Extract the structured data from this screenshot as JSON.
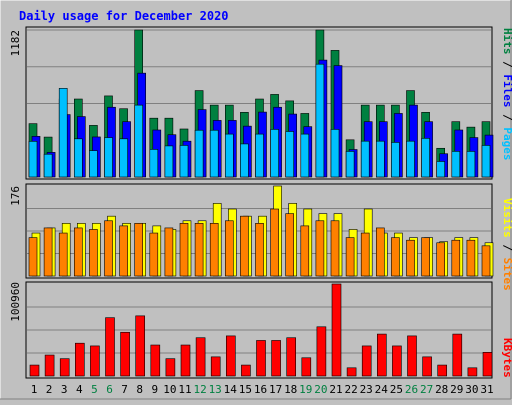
{
  "title": "Daily usage for December 2020",
  "colors": {
    "background": "#c0c0c0",
    "panel": "#c0c0c0",
    "grid": "#808080",
    "title": "#0000ff",
    "hits": "#008040",
    "files": "#0000ff",
    "pages": "#00c0ff",
    "visits": "#ffff00",
    "sites": "#ff8000",
    "kbytes": "#ff0000",
    "weekend": "#008040",
    "weekday": "#000000"
  },
  "chart_data": [
    {
      "type": "bar",
      "name": "hits-files-pages",
      "ymax_label": "1182",
      "ylim": [
        0,
        1182
      ],
      "categories": [
        "1",
        "2",
        "3",
        "4",
        "5",
        "6",
        "7",
        "8",
        "9",
        "10",
        "11",
        "12",
        "13",
        "14",
        "15",
        "16",
        "17",
        "18",
        "19",
        "20",
        "21",
        "22",
        "23",
        "24",
        "25",
        "26",
        "27",
        "28",
        "29",
        "30",
        "31"
      ],
      "series": [
        {
          "name": "Hits",
          "values": [
            429,
            321,
            627,
            627,
            415,
            652,
            549,
            1182,
            473,
            473,
            386,
            695,
            578,
            578,
            520,
            627,
            664,
            612,
            511,
            1182,
            1018,
            299,
            578,
            578,
            578,
            695,
            520,
            231,
            445,
            401,
            445
          ]
        },
        {
          "name": "Files",
          "values": [
            327,
            198,
            502,
            486,
            322,
            561,
            445,
            835,
            378,
            340,
            288,
            542,
            455,
            455,
            409,
            522,
            561,
            506,
            405,
            940,
            896,
            221,
            445,
            445,
            511,
            578,
            445,
            187,
            378,
            317,
            337
          ]
        },
        {
          "name": "Pages",
          "values": [
            287,
            183,
            713,
            307,
            212,
            317,
            307,
            578,
            222,
            250,
            254,
            376,
            376,
            345,
            266,
            345,
            383,
            366,
            345,
            907,
            383,
            206,
            288,
            288,
            278,
            288,
            311,
            125,
            206,
            206,
            254
          ]
        }
      ],
      "legend": [
        "Pages",
        "Files",
        "Hits"
      ]
    },
    {
      "type": "bar",
      "name": "sites-visits",
      "ymax_label": "176",
      "ylim": [
        0,
        176
      ],
      "categories": [
        "1",
        "2",
        "3",
        "4",
        "5",
        "6",
        "7",
        "8",
        "9",
        "10",
        "11",
        "12",
        "13",
        "14",
        "15",
        "16",
        "17",
        "18",
        "19",
        "20",
        "21",
        "22",
        "23",
        "24",
        "25",
        "26",
        "27",
        "28",
        "29",
        "30",
        "31"
      ],
      "series": [
        {
          "name": "Visits",
          "values": [
            84,
            94,
            103,
            103,
            103,
            117,
            103,
            103,
            98,
            91,
            108,
            108,
            142,
            131,
            117,
            117,
            176,
            142,
            131,
            122,
            122,
            91,
            131,
            84,
            84,
            75,
            75,
            67,
            75,
            75,
            65
          ]
        },
        {
          "name": "Sites",
          "values": [
            75,
            94,
            84,
            94,
            91,
            108,
            98,
            103,
            84,
            94,
            103,
            103,
            103,
            108,
            117,
            103,
            131,
            122,
            98,
            108,
            108,
            75,
            84,
            94,
            75,
            70,
            75,
            65,
            70,
            70,
            59
          ]
        }
      ],
      "legend": [
        "Sites",
        "Visits"
      ]
    },
    {
      "type": "bar",
      "name": "kbytes",
      "ymax_label": "100960",
      "ylim": [
        0,
        100960
      ],
      "categories": [
        "1",
        "2",
        "3",
        "4",
        "5",
        "6",
        "7",
        "8",
        "9",
        "10",
        "11",
        "12",
        "13",
        "14",
        "15",
        "16",
        "17",
        "18",
        "19",
        "20",
        "21",
        "22",
        "23",
        "24",
        "25",
        "26",
        "27",
        "28",
        "29",
        "30",
        "31"
      ],
      "series": [
        {
          "name": "KBytes",
          "values": [
            12000,
            23000,
            19000,
            36000,
            33000,
            64000,
            48000,
            66000,
            34000,
            19000,
            34000,
            42000,
            21000,
            44000,
            12000,
            39000,
            39000,
            42000,
            20000,
            54000,
            100960,
            9000,
            33000,
            46000,
            33000,
            44000,
            21000,
            12000,
            46000,
            9000,
            26000
          ]
        }
      ],
      "legend": [
        "KBytes"
      ]
    }
  ],
  "day_labels": [
    "1",
    "2",
    "3",
    "4",
    "5",
    "6",
    "7",
    "8",
    "9",
    "10",
    "11",
    "12",
    "13",
    "14",
    "15",
    "16",
    "17",
    "18",
    "19",
    "20",
    "21",
    "22",
    "23",
    "24",
    "25",
    "26",
    "27",
    "28",
    "29",
    "30",
    "31"
  ],
  "weekend_days": [
    "5",
    "6",
    "12",
    "13",
    "19",
    "20",
    "26",
    "27"
  ]
}
